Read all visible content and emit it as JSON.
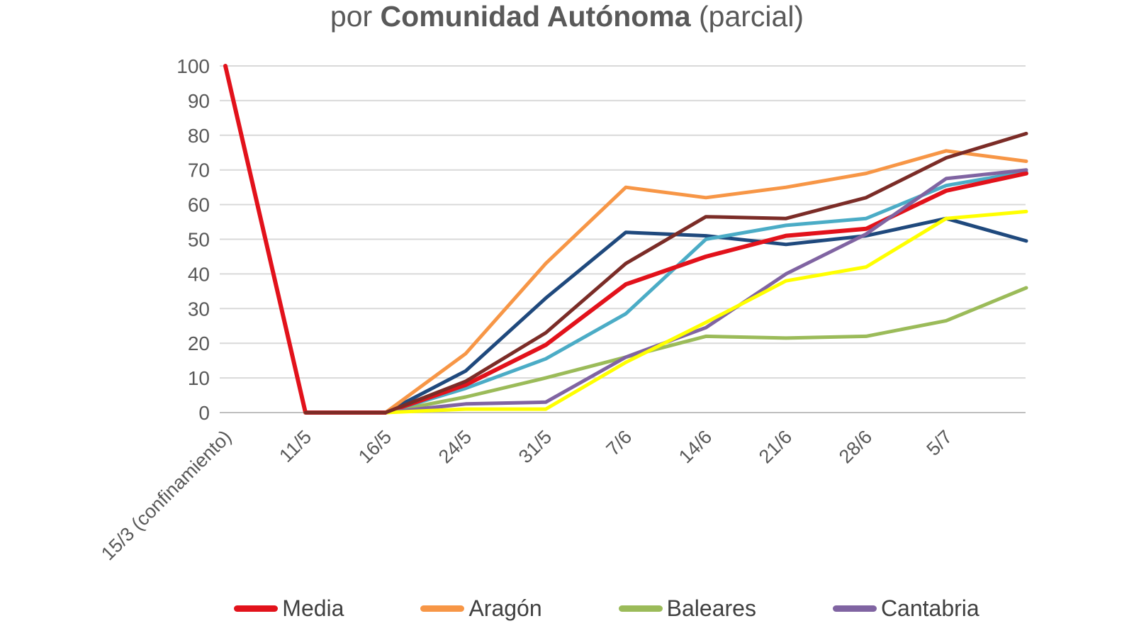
{
  "title": {
    "prefix": "por ",
    "bold": "Comunidad Autónoma",
    "suffix": " (parcial)"
  },
  "axis_colors": {
    "grid": "#d9d9d9",
    "baseline": "#bfbfbf",
    "tick_text": "#595959"
  },
  "chart_data": {
    "type": "line",
    "title": "por Comunidad Autónoma (parcial)",
    "categories": [
      "15/3 (confinamiento)",
      "11/5",
      "16/5",
      "24/5",
      "31/5",
      "7/6",
      "14/6",
      "21/6",
      "28/6",
      "5/7",
      ""
    ],
    "ylim": [
      0,
      100
    ],
    "ytick_step": 10,
    "grid": "horizontal-only",
    "legend_position": "bottom",
    "note_last_point_label_cut_off": true,
    "series": [
      {
        "key": "baleares",
        "name": "Baleares",
        "color": "#9bbb59",
        "in_legend": true,
        "values": [
          null,
          0,
          0,
          4.5,
          10,
          16,
          22,
          21.5,
          22,
          26.5,
          36
        ]
      },
      {
        "key": "navy",
        "name": "",
        "color": "#1f497d",
        "in_legend": false,
        "values": [
          null,
          0,
          0,
          12,
          33,
          52,
          51,
          48.5,
          51,
          56,
          49.5
        ]
      },
      {
        "key": "teal",
        "name": "",
        "color": "#4bacc6",
        "in_legend": false,
        "values": [
          null,
          0,
          0,
          7,
          15.5,
          28.5,
          50,
          54,
          56,
          65.5,
          69.5
        ]
      },
      {
        "key": "media",
        "name": "Media",
        "color": "#e2121b",
        "in_legend": true,
        "values": [
          100,
          0,
          0,
          8,
          19.5,
          37,
          45,
          51,
          53,
          64,
          69
        ]
      },
      {
        "key": "aragon",
        "name": "Aragón",
        "color": "#f79646",
        "in_legend": true,
        "values": [
          null,
          0,
          0,
          17,
          43,
          65,
          62,
          65,
          69,
          75.5,
          72.5
        ]
      },
      {
        "key": "cantabria",
        "name": "Cantabria",
        "color": "#8064a2",
        "in_legend": true,
        "values": [
          null,
          0,
          0,
          2.5,
          3,
          16,
          24.5,
          40,
          51.5,
          67.5,
          70
        ]
      },
      {
        "key": "yellow",
        "name": "",
        "color": "#ffff00",
        "in_legend": false,
        "values": [
          null,
          0,
          0,
          1,
          1,
          14.5,
          26,
          38,
          42,
          56,
          58
        ]
      },
      {
        "key": "maroon",
        "name": "",
        "color": "#7b2c27",
        "in_legend": false,
        "values": [
          null,
          0,
          0,
          9,
          23,
          43,
          56.5,
          56,
          62,
          73.5,
          80.5
        ]
      }
    ],
    "legend_order": [
      "media",
      "aragon",
      "baleares",
      "cantabria"
    ]
  }
}
